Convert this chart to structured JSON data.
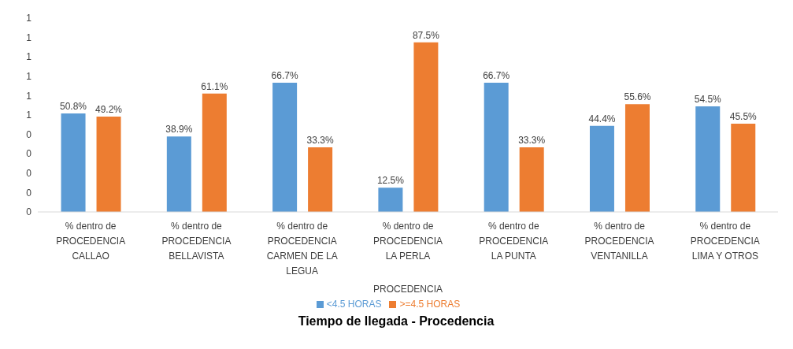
{
  "chart_data": {
    "type": "bar",
    "title": "Tiempo de llegada - Procedencia",
    "xlabel": "PROCEDENCIA",
    "categories": [
      "% dentro de PROCEDENCIA CALLAO",
      "% dentro de PROCEDENCIA BELLAVISTA",
      "% dentro de PROCEDENCIA CARMEN DE LA LEGUA",
      "% dentro de PROCEDENCIA LA PERLA",
      "% dentro de PROCEDENCIA LA PUNTA",
      "% dentro de PROCEDENCIA VENTANILLA",
      "% dentro de PROCEDENCIA LIMA Y OTROS"
    ],
    "series": [
      {
        "name": "<4.5 HORAS",
        "color": "#5b9bd5",
        "values": [
          0.508,
          0.389,
          0.667,
          0.125,
          0.667,
          0.444,
          0.545
        ],
        "value_labels": [
          "50.8%",
          "38.9%",
          "66.7%",
          "12.5%",
          "66.7%",
          "44.4%",
          "54.5%"
        ]
      },
      {
        "name": ">=4.5 HORAS",
        "color": "#ed7d31",
        "values": [
          0.492,
          0.611,
          0.333,
          0.875,
          0.333,
          0.556,
          0.455
        ],
        "value_labels": [
          "49.2%",
          "61.1%",
          "33.3%",
          "87.5%",
          "33.3%",
          "55.6%",
          "45.5%"
        ]
      }
    ],
    "ylim": [
      0,
      1
    ],
    "yticks": [
      0,
      {
        "value": 0.1,
        "label": "0"
      },
      {
        "value": 0.2,
        "label": "0"
      },
      {
        "value": 0.3,
        "label": "0"
      },
      {
        "value": 0.4,
        "label": "0"
      },
      {
        "value": 0.5,
        "label": "1"
      },
      {
        "value": 0.6,
        "label": "1"
      },
      {
        "value": 0.7,
        "label": "1"
      },
      {
        "value": 0.8,
        "label": "1"
      },
      {
        "value": 0.9,
        "label": "1"
      },
      {
        "value": 1,
        "label": "1"
      }
    ],
    "legend": "bottom"
  }
}
